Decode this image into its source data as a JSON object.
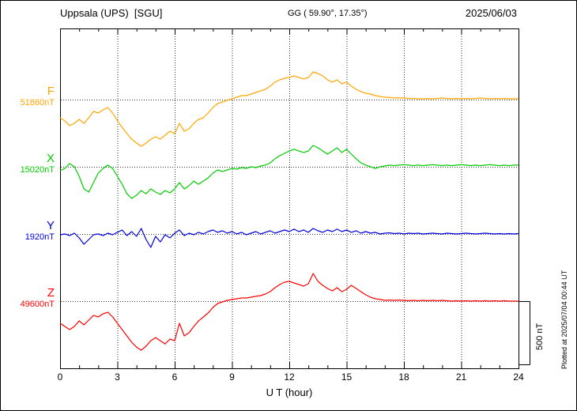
{
  "header": {
    "station": "Uppsala (UPS)  [SGU]",
    "coordinates": "GG ( 59.90°, 17.35°)",
    "date": "2025/06/03"
  },
  "plotted_at": "Plotted at 2025/07/04 00:44 UT",
  "scale_bar": {
    "label": "500 nT",
    "nT": 500
  },
  "chart_data": {
    "type": "line",
    "xlabel": "U T (hour)",
    "x_ticks": [
      0,
      3,
      6,
      9,
      12,
      15,
      18,
      21,
      24
    ],
    "x_range": [
      0,
      24
    ],
    "x_minor_step": 1,
    "t_start": 0,
    "t_step": 0.25,
    "units": "nT, offset from each component baseline value",
    "grid": "dotted vertical lines every 3 h; dotted horizontal line at each component baseline",
    "legend_position": "left margin, one colored label per trace",
    "series": [
      {
        "name": "F",
        "color": "#FFA500",
        "baseline_label": "51860nT",
        "baseline_nT": 51860,
        "values": [
          -144,
          -169,
          -206,
          -188,
          -156,
          -188,
          -144,
          -94,
          -106,
          -81,
          -63,
          -106,
          -169,
          -219,
          -269,
          -313,
          -344,
          -369,
          -344,
          -313,
          -294,
          -313,
          -281,
          -250,
          -269,
          -188,
          -250,
          -231,
          -188,
          -156,
          -144,
          -106,
          -63,
          -31,
          -19,
          -6,
          6,
          19,
          31,
          31,
          44,
          56,
          69,
          81,
          106,
          138,
          156,
          169,
          175,
          188,
          175,
          163,
          175,
          219,
          206,
          188,
          156,
          138,
          156,
          125,
          138,
          106,
          81,
          63,
          50,
          44,
          31,
          25,
          19,
          16,
          13,
          13,
          13,
          9,
          9,
          6,
          6,
          9,
          6,
          9,
          13,
          9,
          6,
          9,
          6,
          9,
          6,
          9,
          13,
          9,
          6,
          9,
          6,
          9,
          6,
          6,
          6
        ]
      },
      {
        "name": "X",
        "color": "#00CC00",
        "baseline_label": "15020nT",
        "baseline_nT": 15020,
        "values": [
          -31,
          -13,
          25,
          0,
          -75,
          -175,
          -200,
          -125,
          -50,
          -13,
          13,
          -13,
          -75,
          -138,
          -213,
          -250,
          -225,
          -188,
          -213,
          -175,
          -200,
          -219,
          -188,
          -206,
          -175,
          -125,
          -175,
          -150,
          -113,
          -138,
          -113,
          -88,
          -50,
          -25,
          -38,
          -25,
          -13,
          -19,
          -6,
          -13,
          0,
          -6,
          6,
          13,
          31,
          63,
          88,
          106,
          125,
          138,
          125,
          113,
          125,
          169,
          150,
          125,
          100,
          125,
          150,
          113,
          138,
          100,
          63,
          31,
          13,
          0,
          -13,
          0,
          6,
          13,
          9,
          13,
          16,
          13,
          9,
          13,
          9,
          13,
          16,
          13,
          9,
          13,
          9,
          13,
          16,
          13,
          9,
          13,
          9,
          13,
          16,
          13,
          9,
          13,
          9,
          13,
          13
        ]
      },
      {
        "name": "Y",
        "color": "#0000DD",
        "baseline_label": "1920nT",
        "baseline_nT": 1920,
        "values": [
          -6,
          0,
          -13,
          6,
          -31,
          -81,
          -44,
          -6,
          0,
          -13,
          6,
          -6,
          13,
          31,
          -13,
          19,
          -19,
          44,
          -44,
          -106,
          -19,
          -63,
          -6,
          -31,
          6,
          31,
          -13,
          6,
          -6,
          13,
          0,
          19,
          31,
          13,
          25,
          6,
          19,
          0,
          13,
          -6,
          6,
          19,
          0,
          13,
          25,
          6,
          19,
          31,
          19,
          38,
          19,
          31,
          13,
          44,
          25,
          13,
          31,
          19,
          38,
          19,
          31,
          13,
          25,
          6,
          19,
          6,
          13,
          0,
          6,
          9,
          3,
          6,
          0,
          6,
          3,
          6,
          0,
          3,
          6,
          3,
          0,
          6,
          3,
          0,
          3,
          6,
          3,
          0,
          3,
          6,
          3,
          0,
          3,
          0,
          3,
          0,
          3
        ]
      },
      {
        "name": "Z",
        "color": "#FF0000",
        "baseline_label": "49600nT",
        "baseline_nT": 49600,
        "values": [
          -175,
          -200,
          -225,
          -200,
          -156,
          -188,
          -150,
          -113,
          -125,
          -100,
          -88,
          -125,
          -175,
          -225,
          -275,
          -325,
          -363,
          -388,
          -356,
          -313,
          -288,
          -313,
          -338,
          -300,
          -313,
          -175,
          -275,
          -250,
          -200,
          -156,
          -125,
          -94,
          -50,
          -19,
          -6,
          6,
          13,
          19,
          25,
          25,
          31,
          38,
          44,
          56,
          75,
          106,
          131,
          150,
          156,
          144,
          131,
          119,
          138,
          219,
          156,
          125,
          100,
          81,
          106,
          75,
          94,
          125,
          100,
          75,
          50,
          31,
          19,
          13,
          6,
          9,
          6,
          9,
          6,
          3,
          6,
          3,
          6,
          3,
          6,
          3,
          6,
          3,
          0,
          3,
          0,
          3,
          0,
          3,
          0,
          3,
          0,
          3,
          0,
          3,
          0,
          0,
          0
        ]
      }
    ]
  }
}
